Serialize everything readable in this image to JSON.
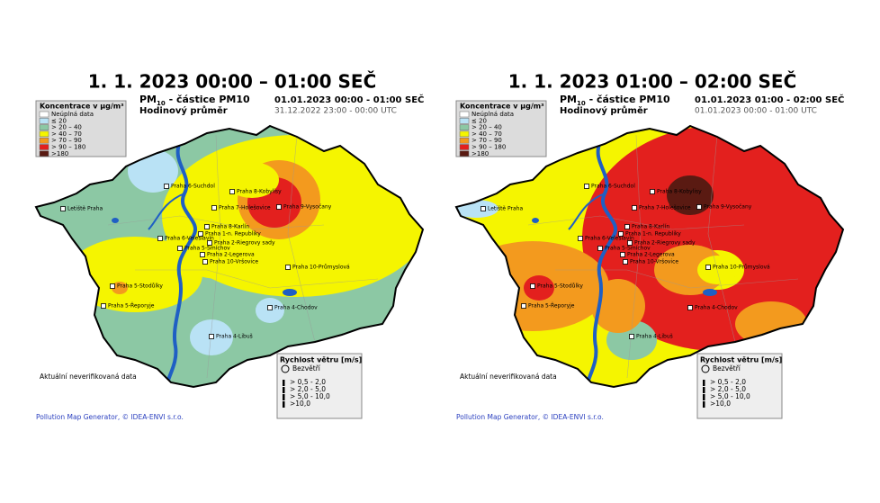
{
  "panels": [
    {
      "title": "1. 1. 2023 00:00 – 01:00 SEČ",
      "pollutant": "PM",
      "pollutant_sub": "10",
      "pollutant_rest": " - částice PM10",
      "averaging": "Hodinový průměr",
      "time_local": "01.01.2023 00:00 - 01:00 SEČ",
      "time_utc": "31.12.2022 23:00 - 00:00 UTC"
    },
    {
      "title": "1. 1. 2023 01:00 – 02:00 SEČ",
      "pollutant": "PM",
      "pollutant_sub": "10",
      "pollutant_rest": " - částice PM10",
      "averaging": "Hodinový průměr",
      "time_local": "01.01.2023 01:00 - 02:00 SEČ",
      "time_utc": "01.01.2023 00:00 - 01:00 UTC"
    }
  ],
  "legend": {
    "title": "Koncentrace v µg/m³",
    "items": [
      {
        "label": "Neúplná data",
        "color": "#ffffff"
      },
      {
        "label": "≤ 20",
        "color": "#b9e2f5"
      },
      {
        "label": "> 20 – 40",
        "color": "#8cc8a4"
      },
      {
        "label": "> 40 – 70",
        "color": "#f5f500"
      },
      {
        "label": "> 70 – 90",
        "color": "#f39a1e"
      },
      {
        "label": "> 90 – 180",
        "color": "#e3201e"
      },
      {
        "label": ">180",
        "color": "#5a1a12"
      }
    ]
  },
  "wind_legend": {
    "title": "Rychlost větru [m/s]",
    "calm": "Bezvětří",
    "items": [
      "> 0,5 -   2,0",
      "> 2,0 -   5,0",
      "> 5,0 - 10,0",
      ">10,0"
    ]
  },
  "stations": [
    "Praha 6-Suchdol",
    "Praha 8-Kobylisy",
    "Praha 9-Vysočany",
    "Praha 7-Holešovice",
    "Letiště Praha",
    "Praha 8-Karlín",
    "Praha 1-n. Republiky",
    "Praha 2-Riegrovy sady",
    "Praha 6-Veleslavín",
    "Praha 5-Smíchov",
    "Praha 2-Legerova",
    "Praha 10-Vršovice",
    "Praha 10-Průmyslová",
    "Praha 5-Stodůlky",
    "Praha 5-Řeporyje",
    "Praha 4-Chodov",
    "Praha 4-Libuš"
  ],
  "note": "Aktuální neverifikovaná data",
  "footer": "Pollution Map Generator, © IDEA-ENVI s.r.o."
}
